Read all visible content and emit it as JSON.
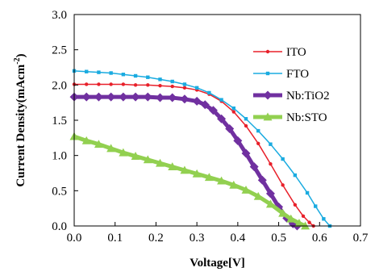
{
  "chart_data": {
    "type": "line",
    "title": "",
    "xlabel": "Voltage[V]",
    "ylabel_main": "Current Density(mAcm",
    "ylabel_sup": "-2",
    "ylabel_close": ")",
    "xlim": [
      0.0,
      0.7
    ],
    "ylim": [
      0.0,
      3.0
    ],
    "x_ticks": [
      "0.0",
      "0.1",
      "0.2",
      "0.3",
      "0.4",
      "0.5",
      "0.6",
      "0.7"
    ],
    "y_ticks": [
      "0.0",
      "0.5",
      "1.0",
      "1.5",
      "2.0",
      "2.5",
      "3.0"
    ],
    "grid": false,
    "legend_position": "top-right",
    "series": [
      {
        "name": "ITO",
        "color": "#e8202a",
        "marker": "circle",
        "line_width": 1.5,
        "x": [
          0.0,
          0.03,
          0.06,
          0.09,
          0.12,
          0.15,
          0.18,
          0.21,
          0.24,
          0.27,
          0.3,
          0.33,
          0.36,
          0.39,
          0.42,
          0.45,
          0.48,
          0.51,
          0.54,
          0.56,
          0.575,
          0.585
        ],
        "y": [
          2.01,
          2.01,
          2.01,
          2.01,
          2.01,
          2.0,
          2.0,
          1.99,
          1.98,
          1.96,
          1.93,
          1.87,
          1.77,
          1.62,
          1.42,
          1.17,
          0.88,
          0.58,
          0.3,
          0.14,
          0.05,
          0.0
        ]
      },
      {
        "name": "FTO",
        "color": "#1aabe0",
        "marker": "square",
        "line_width": 1.5,
        "x": [
          0.0,
          0.03,
          0.06,
          0.09,
          0.12,
          0.15,
          0.18,
          0.21,
          0.24,
          0.27,
          0.3,
          0.33,
          0.36,
          0.39,
          0.42,
          0.45,
          0.48,
          0.51,
          0.54,
          0.57,
          0.59,
          0.61,
          0.625
        ],
        "y": [
          2.2,
          2.19,
          2.18,
          2.17,
          2.15,
          2.13,
          2.11,
          2.08,
          2.05,
          2.01,
          1.96,
          1.89,
          1.79,
          1.67,
          1.52,
          1.35,
          1.16,
          0.95,
          0.72,
          0.47,
          0.28,
          0.1,
          0.0
        ]
      },
      {
        "name": "Nb:TiO2",
        "color": "#7030a0",
        "marker": "diamond",
        "line_width": 5,
        "x": [
          0.0,
          0.03,
          0.06,
          0.09,
          0.12,
          0.15,
          0.18,
          0.21,
          0.24,
          0.27,
          0.3,
          0.32,
          0.34,
          0.36,
          0.38,
          0.4,
          0.42,
          0.44,
          0.46,
          0.48,
          0.5,
          0.52,
          0.535,
          0.545
        ],
        "y": [
          1.83,
          1.83,
          1.83,
          1.83,
          1.83,
          1.83,
          1.83,
          1.82,
          1.82,
          1.8,
          1.77,
          1.72,
          1.64,
          1.52,
          1.38,
          1.21,
          1.03,
          0.84,
          0.65,
          0.46,
          0.27,
          0.11,
          0.03,
          0.0
        ]
      },
      {
        "name": "Nb:STO",
        "color": "#92d050",
        "marker": "triangle",
        "line_width": 5,
        "x": [
          0.0,
          0.03,
          0.06,
          0.09,
          0.12,
          0.15,
          0.18,
          0.21,
          0.24,
          0.27,
          0.3,
          0.33,
          0.36,
          0.39,
          0.42,
          0.45,
          0.48,
          0.51,
          0.53,
          0.55,
          0.565
        ],
        "y": [
          1.27,
          1.21,
          1.16,
          1.1,
          1.04,
          0.99,
          0.94,
          0.89,
          0.84,
          0.79,
          0.74,
          0.69,
          0.64,
          0.58,
          0.51,
          0.42,
          0.31,
          0.18,
          0.1,
          0.04,
          0.0
        ]
      }
    ]
  }
}
